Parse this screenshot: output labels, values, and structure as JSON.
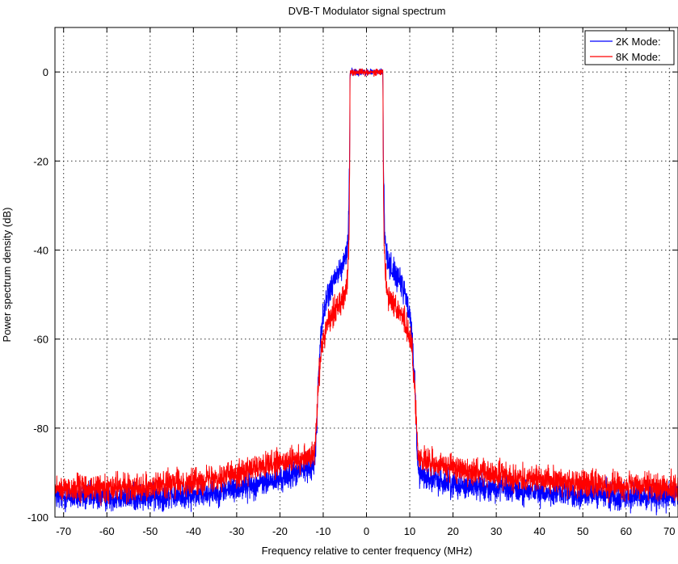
{
  "chart_data": {
    "type": "line",
    "title": "DVB-T Modulator signal spectrum",
    "xlabel": "Frequency relative to center frequency (MHz)",
    "ylabel": "Power spectrum density (dB)",
    "xlim": [
      -72,
      72
    ],
    "ylim": [
      -100,
      10
    ],
    "xticks": [
      -70,
      -60,
      -50,
      -40,
      -30,
      -20,
      -10,
      0,
      10,
      20,
      30,
      40,
      50,
      60,
      70
    ],
    "yticks": [
      0,
      -20,
      -40,
      -60,
      -80,
      -100
    ],
    "grid": true,
    "legend": "top-right",
    "series": [
      {
        "name": "2K Mode:",
        "color": "#0000ff",
        "noise_db": 2.2,
        "x": [
          -72,
          -60,
          -50,
          -40,
          -30,
          -20,
          -15,
          -12,
          -11.6,
          -11.2,
          -10.5,
          -9,
          -7,
          -5.5,
          -4.6,
          -4.2,
          -3.9,
          -3.8,
          0,
          3.8,
          3.9,
          4.2,
          4.6,
          5.5,
          7,
          9,
          10.5,
          11.2,
          11.6,
          12,
          15,
          20,
          30,
          40,
          50,
          60,
          72
        ],
        "values": [
          -95.5,
          -95.5,
          -95.5,
          -95,
          -93.5,
          -91.5,
          -89.5,
          -88,
          -83,
          -70,
          -58,
          -50,
          -46,
          -43.5,
          -41,
          -36,
          -20,
          0,
          0,
          0,
          -20,
          -36,
          -41,
          -43.5,
          -46,
          -50,
          -58,
          -70,
          -83,
          -90,
          -91.5,
          -92.5,
          -93.5,
          -94.5,
          -95,
          -95.3,
          -95.5
        ]
      },
      {
        "name": "8K Mode:",
        "color": "#ff0000",
        "noise_db": 2.2,
        "x": [
          -72,
          -60,
          -50,
          -40,
          -30,
          -20,
          -15,
          -12,
          -11.8,
          -11.2,
          -10.5,
          -9,
          -7,
          -5,
          -4.3,
          -4.0,
          -3.85,
          -3.8,
          0,
          3.8,
          3.85,
          4.0,
          4.3,
          5,
          7,
          9,
          10.5,
          11.2,
          11.8,
          12,
          15,
          20,
          30,
          40,
          50,
          60,
          72
        ],
        "values": [
          -93.5,
          -93.5,
          -93,
          -92,
          -90,
          -88,
          -87,
          -86,
          -83,
          -72,
          -62,
          -56,
          -53,
          -50,
          -45,
          -35,
          -15,
          0,
          0,
          0,
          -15,
          -35,
          -45,
          -50,
          -53,
          -56,
          -62,
          -72,
          -83,
          -87,
          -88,
          -89,
          -90.5,
          -91.5,
          -92.5,
          -93,
          -93.5
        ]
      }
    ]
  }
}
